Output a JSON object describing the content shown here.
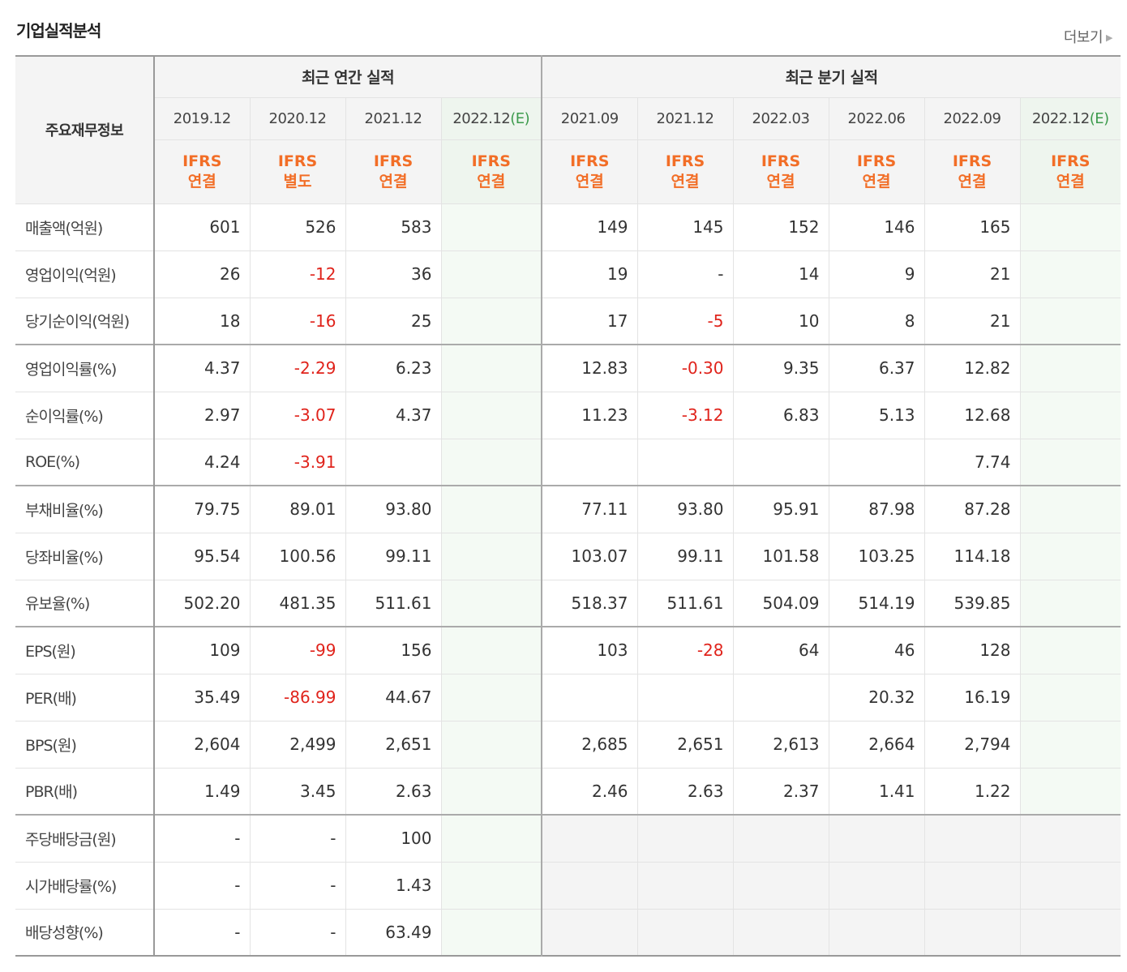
{
  "header": {
    "title": "기업실적분석",
    "more_label": "더보기"
  },
  "table": {
    "label_header": "주요재무정보",
    "group_annual": "최근 연간 실적",
    "group_quarter": "최근 분기 실적",
    "periods": [
      {
        "label": "2019.12",
        "suffix": "",
        "est": false,
        "ifrs": [
          "IFRS",
          "연결"
        ]
      },
      {
        "label": "2020.12",
        "suffix": "",
        "est": false,
        "ifrs": [
          "IFRS",
          "별도"
        ]
      },
      {
        "label": "2021.12",
        "suffix": "",
        "est": false,
        "ifrs": [
          "IFRS",
          "연결"
        ]
      },
      {
        "label": "2022.12",
        "suffix": "(E)",
        "est": true,
        "ifrs": [
          "IFRS",
          "연결"
        ]
      },
      {
        "label": "2021.09",
        "suffix": "",
        "est": false,
        "ifrs": [
          "IFRS",
          "연결"
        ]
      },
      {
        "label": "2021.12",
        "suffix": "",
        "est": false,
        "ifrs": [
          "IFRS",
          "연결"
        ]
      },
      {
        "label": "2022.03",
        "suffix": "",
        "est": false,
        "ifrs": [
          "IFRS",
          "연결"
        ]
      },
      {
        "label": "2022.06",
        "suffix": "",
        "est": false,
        "ifrs": [
          "IFRS",
          "연결"
        ]
      },
      {
        "label": "2022.09",
        "suffix": "",
        "est": false,
        "ifrs": [
          "IFRS",
          "연결"
        ]
      },
      {
        "label": "2022.12",
        "suffix": "(E)",
        "est": true,
        "ifrs": [
          "IFRS",
          "연결"
        ]
      }
    ],
    "rows": [
      {
        "label": "매출액(억원)",
        "sep": false,
        "values": [
          "601",
          "526",
          "583",
          "",
          "149",
          "145",
          "152",
          "146",
          "165",
          ""
        ]
      },
      {
        "label": "영업이익(억원)",
        "sep": false,
        "values": [
          "26",
          "-12",
          "36",
          "",
          "19",
          "-",
          "14",
          "9",
          "21",
          ""
        ]
      },
      {
        "label": "당기순이익(억원)",
        "sep": false,
        "values": [
          "18",
          "-16",
          "25",
          "",
          "17",
          "-5",
          "10",
          "8",
          "21",
          ""
        ]
      },
      {
        "label": "영업이익률(%)",
        "sep": true,
        "values": [
          "4.37",
          "-2.29",
          "6.23",
          "",
          "12.83",
          "-0.30",
          "9.35",
          "6.37",
          "12.82",
          ""
        ]
      },
      {
        "label": "순이익률(%)",
        "sep": false,
        "values": [
          "2.97",
          "-3.07",
          "4.37",
          "",
          "11.23",
          "-3.12",
          "6.83",
          "5.13",
          "12.68",
          ""
        ]
      },
      {
        "label": "ROE(%)",
        "sep": false,
        "values": [
          "4.24",
          "-3.91",
          "",
          "",
          "",
          "",
          "",
          "",
          "7.74",
          ""
        ]
      },
      {
        "label": "부채비율(%)",
        "sep": true,
        "values": [
          "79.75",
          "89.01",
          "93.80",
          "",
          "77.11",
          "93.80",
          "95.91",
          "87.98",
          "87.28",
          ""
        ]
      },
      {
        "label": "당좌비율(%)",
        "sep": false,
        "values": [
          "95.54",
          "100.56",
          "99.11",
          "",
          "103.07",
          "99.11",
          "101.58",
          "103.25",
          "114.18",
          ""
        ]
      },
      {
        "label": "유보율(%)",
        "sep": false,
        "values": [
          "502.20",
          "481.35",
          "511.61",
          "",
          "518.37",
          "511.61",
          "504.09",
          "514.19",
          "539.85",
          ""
        ]
      },
      {
        "label": "EPS(원)",
        "sep": true,
        "values": [
          "109",
          "-99",
          "156",
          "",
          "103",
          "-28",
          "64",
          "46",
          "128",
          ""
        ]
      },
      {
        "label": "PER(배)",
        "sep": false,
        "values": [
          "35.49",
          "-86.99",
          "44.67",
          "",
          "",
          "",
          "",
          "20.32",
          "16.19",
          ""
        ]
      },
      {
        "label": "BPS(원)",
        "sep": false,
        "values": [
          "2,604",
          "2,499",
          "2,651",
          "",
          "2,685",
          "2,651",
          "2,613",
          "2,664",
          "2,794",
          ""
        ]
      },
      {
        "label": "PBR(배)",
        "sep": false,
        "values": [
          "1.49",
          "3.45",
          "2.63",
          "",
          "2.46",
          "2.63",
          "2.37",
          "1.41",
          "1.22",
          ""
        ]
      },
      {
        "label": "주당배당금(원)",
        "sep": true,
        "gray_quarters": true,
        "values": [
          "-",
          "-",
          "100",
          "",
          "",
          "",
          "",
          "",
          "",
          ""
        ]
      },
      {
        "label": "시가배당률(%)",
        "sep": false,
        "gray_quarters": true,
        "values": [
          "-",
          "-",
          "1.43",
          "",
          "",
          "",
          "",
          "",
          "",
          ""
        ]
      },
      {
        "label": "배당성향(%)",
        "sep": false,
        "gray_quarters": true,
        "values": [
          "-",
          "-",
          "63.49",
          "",
          "",
          "",
          "",
          "",
          "",
          ""
        ]
      }
    ]
  }
}
